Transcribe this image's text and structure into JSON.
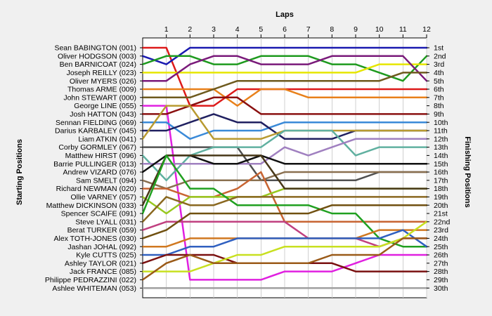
{
  "chart_data": {
    "type": "line",
    "title": "",
    "xlabel": "Laps",
    "ylabel_left": "Starting Positions",
    "ylabel_right": "Finishing Positions",
    "x": [
      0,
      1,
      2,
      3,
      4,
      5,
      6,
      7,
      8,
      9,
      10,
      11,
      12
    ],
    "x_tick_labels": [
      "1",
      "2",
      "3",
      "4",
      "5",
      "6",
      "7",
      "8",
      "9",
      "10",
      "11",
      "12"
    ],
    "y_inverted": true,
    "ylim": [
      1,
      30
    ],
    "grid": true,
    "finish_labels": [
      "1st",
      "2nd",
      "3rd",
      "4th",
      "5th",
      "6th",
      "7th",
      "8th",
      "9th",
      "10th",
      "11th",
      "12th",
      "13th",
      "14th",
      "15th",
      "16th",
      "17th",
      "18th",
      "19th",
      "20th",
      "21st",
      "22nd",
      "23rd",
      "24th",
      "25th",
      "26th",
      "27th",
      "28th",
      "29th",
      "30th"
    ],
    "series": [
      {
        "name": "Sean BABINGTON (001)",
        "color": "#dd1a1a",
        "values": [
          1,
          1,
          8,
          8,
          6,
          6,
          6,
          6,
          6,
          6,
          6,
          6,
          6
        ]
      },
      {
        "name": "Oliver HODGSON (003)",
        "color": "#1a1ab0",
        "values": [
          2,
          3,
          1,
          1,
          1,
          1,
          1,
          1,
          1,
          1,
          1,
          1,
          1
        ]
      },
      {
        "name": "Ben BARNICOAT (024)",
        "color": "#1e9a1e",
        "values": [
          3,
          2,
          2,
          3,
          3,
          2,
          2,
          2,
          3,
          3,
          4,
          5,
          2
        ]
      },
      {
        "name": "Joseph REILLY (023)",
        "color": "#e6e600",
        "values": [
          4,
          4,
          4,
          4,
          4,
          4,
          4,
          4,
          4,
          4,
          3,
          3,
          3
        ]
      },
      {
        "name": "Oliver MYERS (026)",
        "color": "#7a1a7a",
        "values": [
          5,
          5,
          3,
          2,
          2,
          3,
          3,
          3,
          2,
          2,
          2,
          2,
          5
        ]
      },
      {
        "name": "Thomas ARME (009)",
        "color": "#e8801a",
        "values": [
          6,
          6,
          6,
          6,
          8,
          6,
          6,
          7,
          7,
          7,
          7,
          7,
          7
        ]
      },
      {
        "name": "John STEWART (000)",
        "color": "#6e5a1e",
        "values": [
          7,
          7,
          7,
          6,
          5,
          5,
          5,
          5,
          5,
          5,
          5,
          4,
          4
        ]
      },
      {
        "name": "George LINE (055)",
        "color": "#e020e0",
        "values": [
          8,
          8,
          29,
          29,
          29,
          29,
          28,
          28,
          28,
          27,
          26,
          26,
          26
        ]
      },
      {
        "name": "Josh HATTON (043)",
        "color": "#8a1010",
        "values": [
          9,
          9,
          8,
          7,
          7,
          9,
          9,
          9,
          9,
          9,
          9,
          9,
          9
        ]
      },
      {
        "name": "Sennan FIELDING (069)",
        "color": "#3a8ad8",
        "values": [
          10,
          10,
          12,
          11,
          11,
          11,
          10,
          10,
          10,
          10,
          10,
          10,
          10
        ]
      },
      {
        "name": "Darius KARBALEY (045)",
        "color": "#202060",
        "values": [
          11,
          11,
          10,
          9,
          10,
          10,
          12,
          12,
          12,
          11,
          11,
          11,
          11
        ]
      },
      {
        "name": "Liam ATKIN (041)",
        "color": "#b89a30",
        "values": [
          12,
          8,
          8,
          12,
          12,
          12,
          11,
          11,
          11,
          11,
          11,
          11,
          11
        ]
      },
      {
        "name": "Corby GORMLEY (067)",
        "color": "#505050",
        "values": [
          13,
          13,
          13,
          13,
          13,
          17,
          17,
          17,
          17,
          17,
          16,
          16,
          16
        ]
      },
      {
        "name": "Matthew HIRST (096)",
        "color": "#60b0a0",
        "values": [
          14,
          17,
          14,
          13,
          13,
          13,
          11,
          11,
          11,
          14,
          13,
          13,
          13
        ]
      },
      {
        "name": "Barrie PULLINGER (013)",
        "color": "#a080c0",
        "values": [
          15,
          15,
          15,
          15,
          15,
          15,
          13,
          14,
          13,
          12,
          12,
          12,
          12
        ]
      },
      {
        "name": "Andrew VIZARD (076)",
        "color": "#101010",
        "values": [
          16,
          14,
          14,
          15,
          15,
          14,
          15,
          15,
          15,
          15,
          15,
          15,
          15
        ]
      },
      {
        "name": "Sam SMELT (094)",
        "color": "#8a7050",
        "values": [
          17,
          18,
          17,
          17,
          17,
          17,
          16,
          16,
          16,
          16,
          16,
          16,
          16
        ]
      },
      {
        "name": "Richard NEWMAN (020)",
        "color": "#c86432",
        "values": [
          18,
          18,
          19,
          19,
          18,
          16,
          22,
          22,
          22,
          22,
          22,
          22,
          22
        ]
      },
      {
        "name": "Ollie VARNEY (057)",
        "color": "#98c820",
        "values": [
          19,
          21,
          19,
          19,
          19,
          19,
          18,
          18,
          18,
          18,
          18,
          18,
          18
        ]
      },
      {
        "name": "Matthew DICKINSON (033)",
        "color": "#483818",
        "values": [
          20,
          14,
          14,
          14,
          14,
          14,
          18,
          18,
          18,
          18,
          18,
          18,
          18
        ]
      },
      {
        "name": "Spencer SCAIFE (091)",
        "color": "#20a020",
        "values": [
          21,
          14,
          18,
          18,
          20,
          20,
          20,
          20,
          21,
          21,
          24,
          25,
          25
        ]
      },
      {
        "name": "Steve LYALL (031)",
        "color": "#8a6820",
        "values": [
          22,
          19,
          20,
          20,
          19,
          19,
          19,
          19,
          19,
          19,
          19,
          19,
          19
        ]
      },
      {
        "name": "Berat TURKER (059)",
        "color": "#c04080",
        "values": [
          23,
          22,
          22,
          22,
          22,
          22,
          22,
          24,
          24,
          24,
          25,
          24,
          24
        ]
      },
      {
        "name": "Alex TOTH-JONES (030)",
        "color": "#705010",
        "values": [
          24,
          23,
          21,
          21,
          21,
          21,
          21,
          21,
          20,
          20,
          20,
          20,
          20
        ]
      },
      {
        "name": "Jashan JOHAL (092)",
        "color": "#d07820",
        "values": [
          25,
          25,
          24,
          24,
          24,
          24,
          24,
          24,
          24,
          24,
          23,
          23,
          23
        ]
      },
      {
        "name": "Kyle CUTTS (025)",
        "color": "#3060c0",
        "values": [
          26,
          26,
          25,
          25,
          24,
          24,
          24,
          24,
          24,
          24,
          24,
          23,
          25
        ]
      },
      {
        "name": "Ashley TAYLOR (021)",
        "color": "#7a1010",
        "values": [
          27,
          26,
          26,
          26,
          27,
          27,
          27,
          27,
          27,
          28,
          28,
          28,
          28
        ]
      },
      {
        "name": "Jack FRANCE (085)",
        "color": "#c8e020",
        "values": [
          28,
          28,
          28,
          27,
          26,
          26,
          25,
          25,
          25,
          25,
          25,
          24,
          22
        ]
      },
      {
        "name": "Philippe PEDRAZZINI (022)",
        "color": "#9a5a18",
        "values": [
          29,
          27,
          26,
          27,
          27,
          27,
          27,
          27,
          26,
          26,
          26,
          24,
          24
        ]
      },
      {
        "name": "Ashlee WHITEMAN (053)",
        "color": "#a0a0a0",
        "values": [
          30,
          30,
          30,
          30,
          30,
          30,
          30,
          30,
          30,
          30,
          30,
          30,
          30
        ]
      }
    ]
  }
}
